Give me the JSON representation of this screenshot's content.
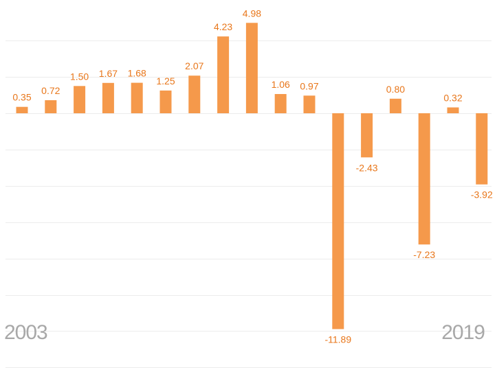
{
  "chart_data": {
    "type": "bar",
    "x_start_label": "2003",
    "x_end_label": "2019",
    "values": [
      0.35,
      0.72,
      1.5,
      1.67,
      1.68,
      1.25,
      2.07,
      4.23,
      4.98,
      1.06,
      0.97,
      -11.89,
      -2.43,
      0.8,
      -7.23,
      0.32,
      -3.92
    ],
    "value_labels": [
      "0.35",
      "0.72",
      "1.50",
      "1.67",
      "1.68",
      "1.25",
      "2.07",
      "4.23",
      "4.98",
      "1.06",
      "0.97",
      "-11.89",
      "-2.43",
      "0.80",
      "-7.23",
      "0.32",
      "-3.92"
    ],
    "ylim": [
      -13.5,
      6
    ],
    "grid": true,
    "colors": {
      "bar": "#f5994b",
      "label": "#e8761a",
      "grid": "#ececec",
      "axis_text": "#a8a8a8"
    }
  }
}
